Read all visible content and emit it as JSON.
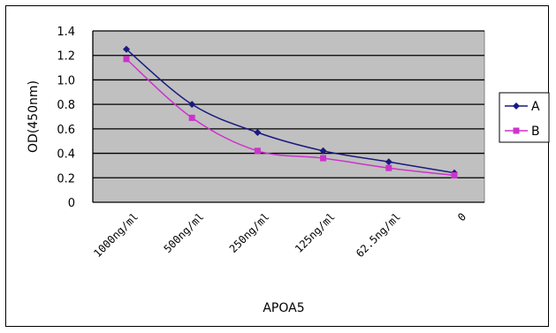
{
  "chart_data": {
    "type": "line",
    "categories": [
      "1000ng/ml",
      "500ng/ml",
      "250ng/ml",
      "125ng/ml",
      "62.5ng/ml",
      "0"
    ],
    "series": [
      {
        "name": "A",
        "values": [
          1.25,
          0.8,
          0.57,
          0.42,
          0.33,
          0.24
        ],
        "color": "#1a1a80",
        "marker": "diamond"
      },
      {
        "name": "B",
        "values": [
          1.17,
          0.69,
          0.42,
          0.36,
          0.28,
          0.22
        ],
        "color": "#cc33cc",
        "marker": "square"
      }
    ],
    "title": "",
    "xlabel": "APOA5",
    "ylabel": "OD(450nm)",
    "ylim": [
      0,
      1.4
    ],
    "yticks": [
      "1.4",
      "1.2",
      "1.0",
      "0.8",
      "0.6",
      "0.4",
      "0.2",
      "0"
    ],
    "plot_background": "#c0c0c0",
    "grid": "horizontal",
    "legend_position": "right"
  }
}
